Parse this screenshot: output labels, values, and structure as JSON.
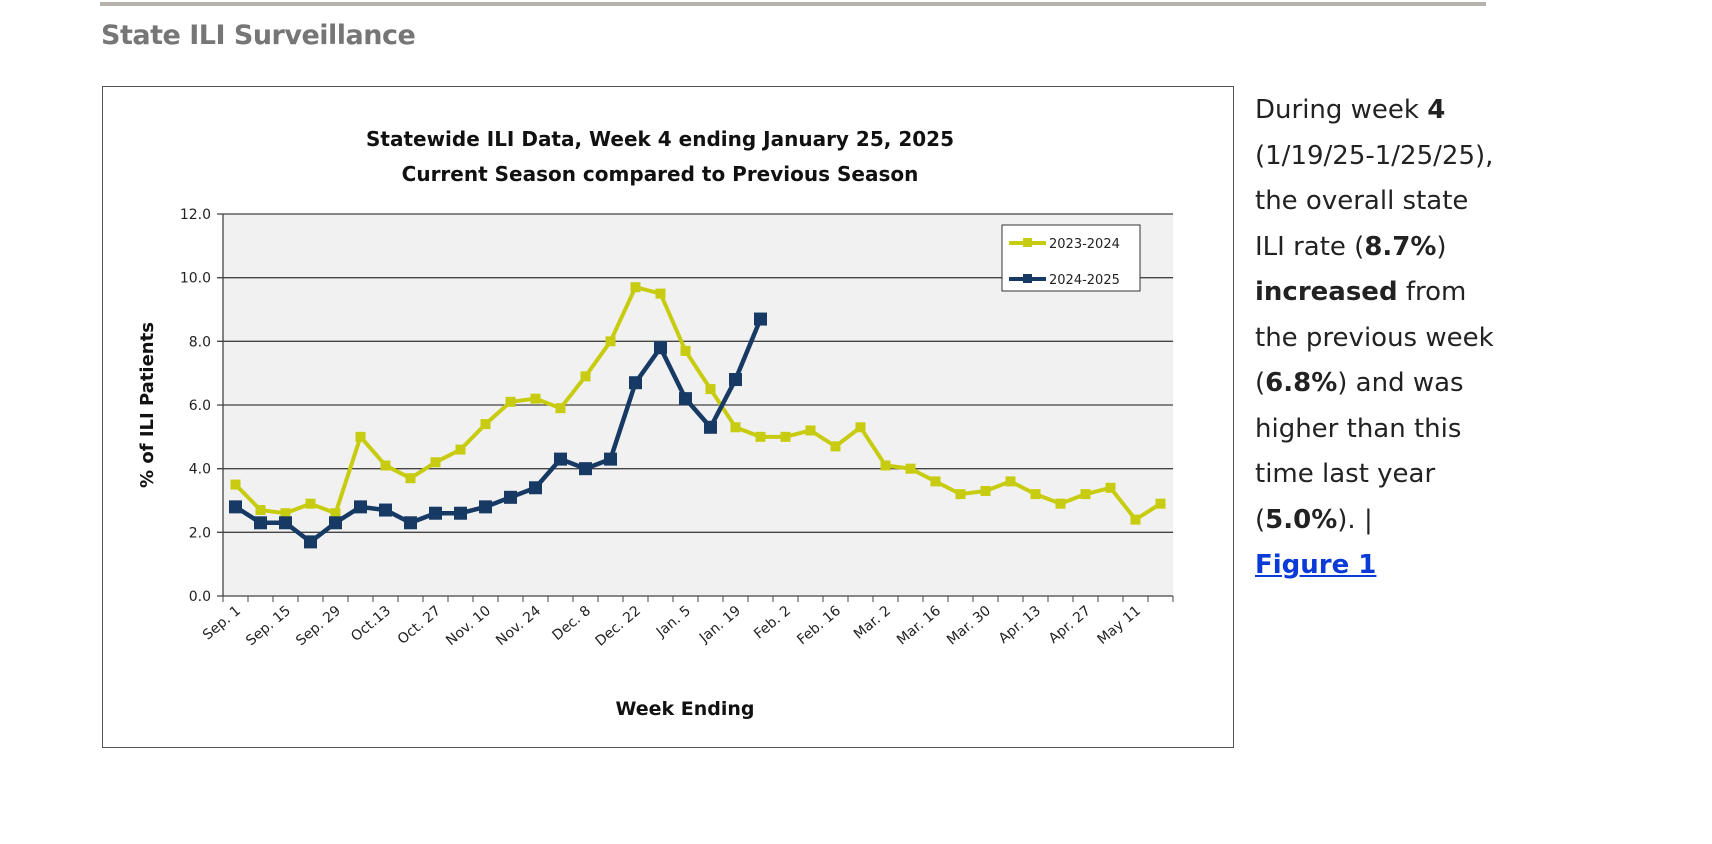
{
  "section_title": "State ILI Surveillance",
  "chart_data": {
    "type": "line",
    "title": "Statewide ILI Data, Week 4 ending January 25, 2025",
    "subtitle": "Current Season compared to Previous Season",
    "xlabel": "Week Ending",
    "ylabel": "% of ILI Patients",
    "ylim": [
      0,
      12
    ],
    "yticks": [
      "0.0",
      "2.0",
      "4.0",
      "6.0",
      "8.0",
      "10.0",
      "12.0"
    ],
    "xtick_labels": [
      "Sep. 1",
      "Sep. 15",
      "Sep. 29",
      "Oct.13",
      "Oct. 27",
      "Nov. 10",
      "Nov. 24",
      "Dec. 8",
      "Dec. 22",
      "Jan. 5",
      "Jan. 19",
      "Feb. 2",
      "Feb. 16",
      "Mar. 2",
      "Mar. 16",
      "Mar. 30",
      "Apr. 13",
      "Apr. 27",
      "May 11"
    ],
    "num_weeks": 38,
    "grid": true,
    "legend_position": "top-right",
    "series": [
      {
        "name": "2023-2024",
        "color": "#c8cc10",
        "values": [
          3.5,
          2.7,
          2.6,
          2.9,
          2.6,
          5.0,
          4.1,
          3.7,
          4.2,
          4.6,
          5.4,
          6.1,
          6.2,
          5.9,
          6.9,
          8.0,
          9.7,
          9.5,
          7.7,
          6.5,
          5.3,
          5.0,
          5.0,
          5.2,
          4.7,
          5.3,
          4.1,
          4.0,
          3.6,
          3.2,
          3.3,
          3.6,
          3.2,
          2.9,
          3.2,
          3.4,
          2.4,
          2.9
        ]
      },
      {
        "name": "2024-2025",
        "color": "#173a64",
        "values": [
          2.8,
          2.3,
          2.3,
          1.7,
          2.3,
          2.8,
          2.7,
          2.3,
          2.6,
          2.6,
          2.8,
          3.1,
          3.4,
          4.3,
          4.0,
          4.3,
          6.7,
          7.8,
          6.2,
          5.3,
          6.8,
          8.7
        ]
      }
    ]
  },
  "summary": {
    "t1": "During week ",
    "week": "4",
    "t2": " (1/19/25-1/25/25), the overall state ILI rate (",
    "rate": "8.7%",
    "t3": ") ",
    "trend": "increased",
    "t4": " from the previous week (",
    "prev": "6.8%",
    "t5": ") and was higher than this time last year (",
    "last_year": "5.0%",
    "t6": "). | ",
    "link": "Figure 1"
  }
}
